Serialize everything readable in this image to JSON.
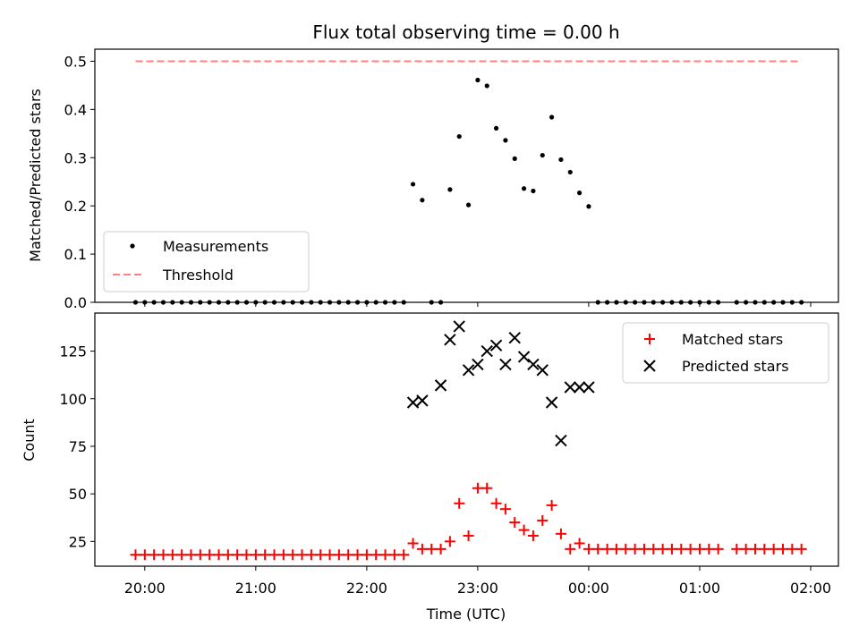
{
  "figure": {
    "title": "Flux total observing time = 0.00 h"
  },
  "chart_data": [
    {
      "type": "scatter",
      "ylabel": "Matched/Predicted stars",
      "ylim": [
        0,
        0.525
      ],
      "yticks": [
        0.0,
        0.1,
        0.2,
        0.3,
        0.4,
        0.5
      ],
      "ytick_labels": [
        "0.0",
        "0.1",
        "0.2",
        "0.3",
        "0.4",
        "0.5"
      ],
      "legend": "lower-left",
      "series": [
        {
          "name": "Measurements",
          "marker": "dot",
          "color": "#000000",
          "x": [
            "19:55",
            "20:00",
            "20:05",
            "20:10",
            "20:15",
            "20:20",
            "20:25",
            "20:30",
            "20:35",
            "20:40",
            "20:45",
            "20:50",
            "20:55",
            "21:00",
            "21:05",
            "21:10",
            "21:15",
            "21:20",
            "21:25",
            "21:30",
            "21:35",
            "21:40",
            "21:45",
            "21:50",
            "21:55",
            "22:00",
            "22:05",
            "22:10",
            "22:15",
            "22:20",
            "22:25",
            "22:30",
            "22:35",
            "22:40",
            "22:45",
            "22:50",
            "22:55",
            "23:00",
            "23:05",
            "23:10",
            "23:15",
            "23:20",
            "23:25",
            "23:30",
            "23:35",
            "23:40",
            "23:45",
            "23:50",
            "23:55",
            "00:00",
            "00:05",
            "00:10",
            "00:15",
            "00:20",
            "00:25",
            "00:30",
            "00:35",
            "00:40",
            "00:45",
            "00:50",
            "00:55",
            "01:00",
            "01:05",
            "01:10",
            "01:20",
            "01:25",
            "01:30",
            "01:35",
            "01:40",
            "01:45",
            "01:50",
            "01:55"
          ],
          "y": [
            0,
            0,
            0,
            0,
            0,
            0,
            0,
            0,
            0,
            0,
            0,
            0,
            0,
            0,
            0,
            0,
            0,
            0,
            0,
            0,
            0,
            0,
            0,
            0,
            0,
            0,
            0,
            0,
            0,
            0,
            0.245,
            0.212,
            0,
            0,
            0.234,
            0.344,
            0.202,
            0.461,
            0.449,
            0.361,
            0.336,
            0.298,
            0.236,
            0.231,
            0.305,
            0.384,
            0.296,
            0.27,
            0.227,
            0.199,
            0,
            0,
            0,
            0,
            0,
            0,
            0,
            0,
            0,
            0,
            0,
            0,
            0,
            0,
            0,
            0,
            0,
            0,
            0,
            0,
            0,
            0
          ]
        },
        {
          "name": "Threshold",
          "style": "dashed",
          "color": "#ff8080",
          "x": [
            "19:55",
            "01:55"
          ],
          "y": [
            0.5,
            0.5
          ]
        }
      ]
    },
    {
      "type": "scatter",
      "xlabel": "Time (UTC)",
      "ylabel": "Count",
      "ylim": [
        12,
        145
      ],
      "yticks": [
        25,
        50,
        75,
        100,
        125
      ],
      "ytick_labels": [
        "25",
        "50",
        "75",
        "100",
        "125"
      ],
      "xlim": [
        "19:33",
        "02:15"
      ],
      "xticks": [
        "20:00",
        "21:00",
        "22:00",
        "23:00",
        "00:00",
        "01:00",
        "02:00"
      ],
      "legend": "top-right",
      "series": [
        {
          "name": "Matched stars",
          "marker": "+",
          "color": "#ff0000",
          "x": [
            "19:55",
            "20:00",
            "20:05",
            "20:10",
            "20:15",
            "20:20",
            "20:25",
            "20:30",
            "20:35",
            "20:40",
            "20:45",
            "20:50",
            "20:55",
            "21:00",
            "21:05",
            "21:10",
            "21:15",
            "21:20",
            "21:25",
            "21:30",
            "21:35",
            "21:40",
            "21:45",
            "21:50",
            "21:55",
            "22:00",
            "22:05",
            "22:10",
            "22:15",
            "22:20",
            "22:25",
            "22:30",
            "22:35",
            "22:40",
            "22:45",
            "22:50",
            "22:55",
            "23:00",
            "23:05",
            "23:10",
            "23:15",
            "23:20",
            "23:25",
            "23:30",
            "23:35",
            "23:40",
            "23:45",
            "23:50",
            "23:55",
            "00:00",
            "00:05",
            "00:10",
            "00:15",
            "00:20",
            "00:25",
            "00:30",
            "00:35",
            "00:40",
            "00:45",
            "00:50",
            "00:55",
            "01:00",
            "01:05",
            "01:10",
            "01:20",
            "01:25",
            "01:30",
            "01:35",
            "01:40",
            "01:45",
            "01:50",
            "01:55"
          ],
          "y": [
            18,
            18,
            18,
            18,
            18,
            18,
            18,
            18,
            18,
            18,
            18,
            18,
            18,
            18,
            18,
            18,
            18,
            18,
            18,
            18,
            18,
            18,
            18,
            18,
            18,
            18,
            18,
            18,
            18,
            18,
            24,
            21,
            21,
            21,
            25,
            45,
            28,
            53,
            53,
            45,
            42,
            35,
            31,
            28,
            36,
            44,
            29,
            21,
            24,
            21,
            21,
            21,
            21,
            21,
            21,
            21,
            21,
            21,
            21,
            21,
            21,
            21,
            21,
            21,
            21,
            21,
            21,
            21,
            21,
            21,
            21,
            21
          ]
        },
        {
          "name": "Predicted stars",
          "marker": "x",
          "color": "#000000",
          "x": [
            "22:25",
            "22:30",
            "22:40",
            "22:45",
            "22:50",
            "22:55",
            "23:00",
            "23:05",
            "23:10",
            "23:15",
            "23:20",
            "23:25",
            "23:30",
            "23:35",
            "23:40",
            "23:45",
            "23:50",
            "23:55",
            "00:00"
          ],
          "y": [
            98,
            99,
            107,
            131,
            138,
            115,
            118,
            125,
            128,
            118,
            132,
            122,
            118,
            115,
            98,
            78,
            106,
            106,
            106
          ]
        }
      ]
    }
  ]
}
